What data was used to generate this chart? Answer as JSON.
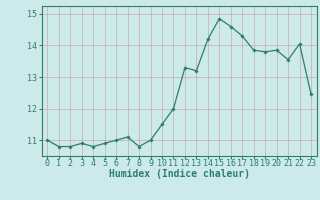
{
  "x": [
    0,
    1,
    2,
    3,
    4,
    5,
    6,
    7,
    8,
    9,
    10,
    11,
    12,
    13,
    14,
    15,
    16,
    17,
    18,
    19,
    20,
    21,
    22,
    23
  ],
  "y": [
    11.0,
    10.8,
    10.8,
    10.9,
    10.8,
    10.9,
    11.0,
    11.1,
    10.8,
    11.0,
    11.5,
    12.0,
    13.3,
    13.2,
    14.2,
    14.85,
    14.6,
    14.3,
    13.85,
    13.8,
    13.85,
    13.55,
    14.05,
    12.45
  ],
  "line_color": "#2e7d6e",
  "marker": "D",
  "marker_size": 1.8,
  "line_width": 0.9,
  "bg_color": "#cceaea",
  "grid_color": "#c8aaaa",
  "xlabel": "Humidex (Indice chaleur)",
  "xlim": [
    -0.5,
    23.5
  ],
  "ylim": [
    10.5,
    15.25
  ],
  "yticks": [
    11,
    12,
    13,
    14,
    15
  ],
  "xticks": [
    0,
    1,
    2,
    3,
    4,
    5,
    6,
    7,
    8,
    9,
    10,
    11,
    12,
    13,
    14,
    15,
    16,
    17,
    18,
    19,
    20,
    21,
    22,
    23
  ],
  "xlabel_fontsize": 7,
  "tick_fontsize": 6,
  "tick_color": "#2e7d6e",
  "axis_color": "#2e7d6e"
}
